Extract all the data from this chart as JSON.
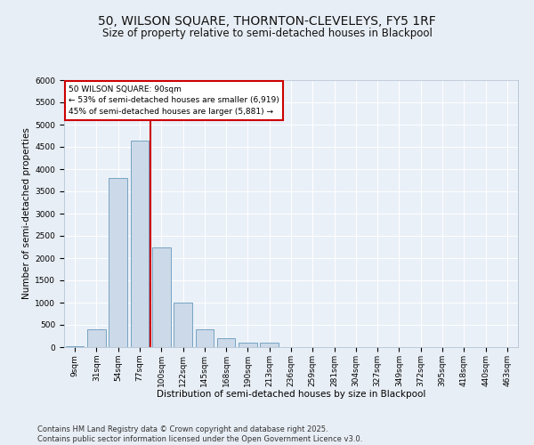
{
  "title1": "50, WILSON SQUARE, THORNTON-CLEVELEYS, FY5 1RF",
  "title2": "Size of property relative to semi-detached houses in Blackpool",
  "xlabel": "Distribution of semi-detached houses by size in Blackpool",
  "ylabel": "Number of semi-detached properties",
  "bar_color": "#ccd9e8",
  "bar_edge_color": "#6699bb",
  "vline_color": "#cc0000",
  "annotation_text": "50 WILSON SQUARE: 90sqm\n← 53% of semi-detached houses are smaller (6,919)\n45% of semi-detached houses are larger (5,881) →",
  "annotation_box_color": "#ffffff",
  "annotation_box_edge": "#cc0000",
  "categories": [
    "9sqm",
    "31sqm",
    "54sqm",
    "77sqm",
    "100sqm",
    "122sqm",
    "145sqm",
    "168sqm",
    "190sqm",
    "213sqm",
    "236sqm",
    "259sqm",
    "281sqm",
    "304sqm",
    "327sqm",
    "349sqm",
    "372sqm",
    "395sqm",
    "418sqm",
    "440sqm",
    "463sqm"
  ],
  "values": [
    20,
    400,
    3800,
    4650,
    2250,
    1000,
    400,
    200,
    100,
    100,
    0,
    0,
    0,
    0,
    0,
    0,
    0,
    0,
    0,
    0,
    0
  ],
  "ylim": [
    0,
    6000
  ],
  "yticks": [
    0,
    500,
    1000,
    1500,
    2000,
    2500,
    3000,
    3500,
    4000,
    4500,
    5000,
    5500,
    6000
  ],
  "background_color": "#e8eef5",
  "plot_bg_color": "#eaf0f8",
  "footer": "Contains HM Land Registry data © Crown copyright and database right 2025.\nContains public sector information licensed under the Open Government Licence v3.0.",
  "title1_fontsize": 10,
  "title2_fontsize": 8.5,
  "xlabel_fontsize": 7.5,
  "ylabel_fontsize": 7.5,
  "tick_fontsize": 6.5,
  "footer_fontsize": 6.0,
  "vline_bin_index": 3.5
}
